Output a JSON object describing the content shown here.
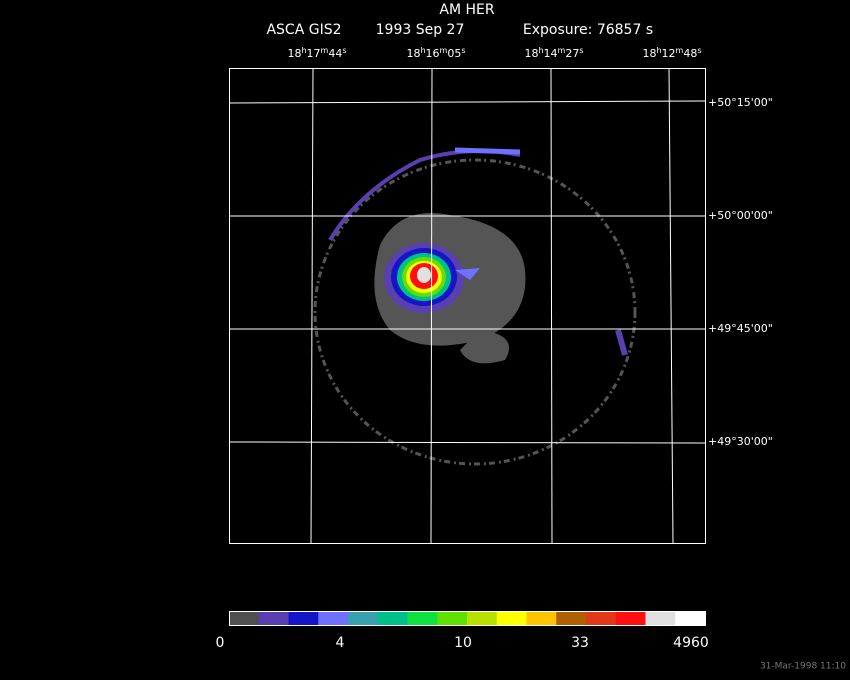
{
  "title": "AM HER",
  "subtitle": {
    "instrument": "ASCA GIS2",
    "date": "1993 Sep 27",
    "exposure": "Exposure: 76857 s"
  },
  "ra_labels": [
    [
      "18",
      "h",
      "17",
      "m",
      "44",
      "s"
    ],
    [
      "18",
      "h",
      "16",
      "m",
      "05",
      "s"
    ],
    [
      "18",
      "h",
      "14",
      "m",
      "27",
      "s"
    ],
    [
      "18",
      "h",
      "12",
      "m",
      "48",
      "s"
    ]
  ],
  "dec_labels": [
    "+50°15'00\"",
    "+50°00'00\"",
    "+49°45'00\"",
    "+49°30'00\""
  ],
  "colorbar": {
    "colors": [
      "#505050",
      "#5a3fb0",
      "#1414c8",
      "#7070ff",
      "#3aa0b0",
      "#00c08a",
      "#10e040",
      "#60e000",
      "#b8e000",
      "#ffff00",
      "#ffc400",
      "#b06000",
      "#e03818",
      "#ff1010",
      "#e0e0e0",
      "#ffffff"
    ],
    "labels": [
      "0",
      "4",
      "10",
      "33",
      "4960"
    ]
  },
  "timestamp": "31-Mar-1998 11:10"
}
